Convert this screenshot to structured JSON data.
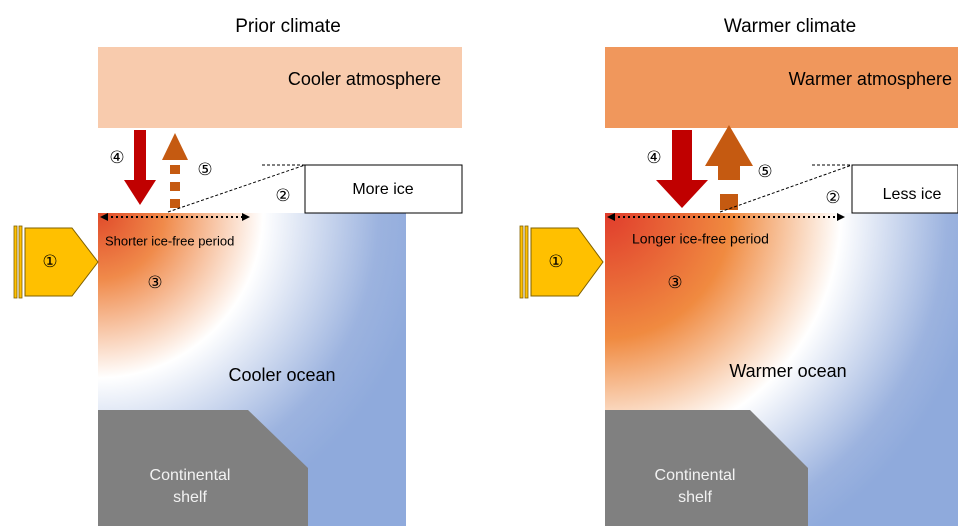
{
  "panels": [
    {
      "title": "Prior climate",
      "atmosphere": "Cooler atmosphere",
      "ice": "More ice",
      "ice_free": "Shorter ice-free period",
      "ocean": "Cooler ocean",
      "shelf": [
        "Continental",
        "shelf"
      ],
      "markers": [
        "①",
        "②",
        "③",
        "④",
        "⑤"
      ]
    },
    {
      "title": "Warmer climate",
      "atmosphere": "Warmer atmosphere",
      "ice": "Less ice",
      "ice_free": "Longer ice-free period",
      "ocean": "Warmer ocean",
      "shelf": [
        "Continental",
        "shelf"
      ],
      "markers": [
        "①",
        "②",
        "③",
        "④",
        "⑤"
      ]
    }
  ]
}
